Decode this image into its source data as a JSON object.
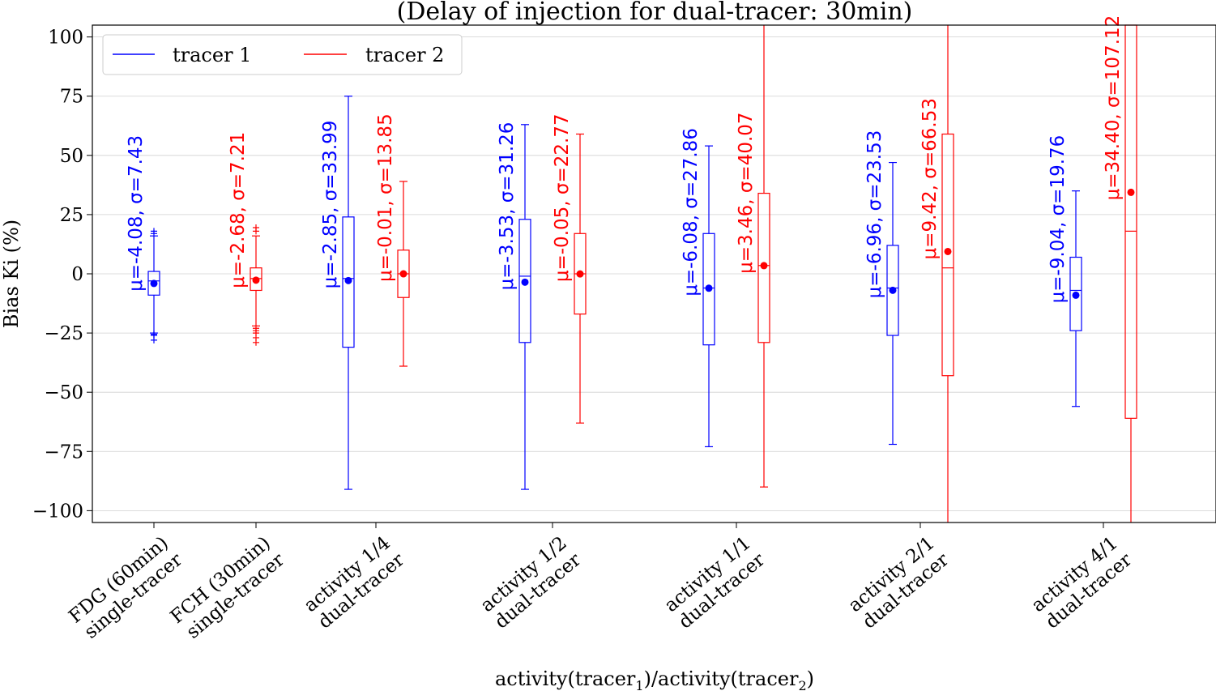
{
  "chart_data": {
    "type": "box",
    "title": "(Delay of injection for dual-tracer: 30min)",
    "xlabel_parts": [
      "activity(tracer",
      "1",
      ")/activity(tracer",
      "2",
      ")"
    ],
    "ylabel": "Bias Ki (%)",
    "ylim": [
      -105,
      105
    ],
    "yticks": [
      100,
      75,
      50,
      25,
      0,
      -25,
      -50,
      -75,
      -100
    ],
    "ytick_labels": [
      "100",
      "75",
      "50",
      "25",
      "0",
      "−25",
      "−50",
      "−75",
      "−100"
    ],
    "grid": "horizontal",
    "legend_position": "top-left",
    "categories": [
      [
        "FDG (60min)",
        "single-tracer"
      ],
      [
        "FCH (30min)",
        "single-tracer"
      ],
      [
        "activity 1/4",
        "dual-tracer"
      ],
      [
        "activity 1/2",
        "dual-tracer"
      ],
      [
        "activity 1/1",
        "dual-tracer"
      ],
      [
        "activity 2/1",
        "dual-tracer"
      ],
      [
        "activity 4/1",
        "dual-tracer"
      ]
    ],
    "series": [
      {
        "name": "tracer 1",
        "color": "#0000ff",
        "boxes": [
          {
            "cat": 0,
            "mean": -4.08,
            "median": -3,
            "q1": -9,
            "q3": 1,
            "whisker_low": -25,
            "whisker_high": 16,
            "outliers": [
              -26,
              -28,
              -25.5,
              17,
              18
            ],
            "label": "μ=-4.08,  σ=7.43"
          },
          {
            "cat": 2,
            "mean": -2.85,
            "median": -2,
            "q1": -31,
            "q3": 24,
            "whisker_low": -91,
            "whisker_high": 75,
            "outliers": [],
            "label": "μ=-2.85,  σ=33.99"
          },
          {
            "cat": 3,
            "mean": -3.53,
            "median": -1,
            "q1": -29,
            "q3": 23,
            "whisker_low": -91,
            "whisker_high": 63,
            "outliers": [],
            "label": "μ=-3.53,  σ=31.26"
          },
          {
            "cat": 4,
            "mean": -6.08,
            "median": -6,
            "q1": -30,
            "q3": 17,
            "whisker_low": -73,
            "whisker_high": 54,
            "outliers": [],
            "label": "μ=-6.08,  σ=27.86"
          },
          {
            "cat": 5,
            "mean": -6.96,
            "median": -6,
            "q1": -26,
            "q3": 12,
            "whisker_low": -72,
            "whisker_high": 47,
            "outliers": [],
            "label": "μ=-6.96,  σ=23.53"
          },
          {
            "cat": 6,
            "mean": -9.04,
            "median": -7,
            "q1": -24,
            "q3": 7,
            "whisker_low": -56,
            "whisker_high": 35,
            "outliers": [],
            "label": "μ=-9.04,  σ=19.76"
          }
        ]
      },
      {
        "name": "tracer 2",
        "color": "#ff0000",
        "boxes": [
          {
            "cat": 1,
            "mean": -2.68,
            "median": -2,
            "q1": -7,
            "q3": 2.5,
            "whisker_low": -22,
            "whisker_high": 16,
            "outliers": [
              -23,
              -24,
              -25,
              -27,
              -29,
              18,
              19.5
            ],
            "label": "μ=-2.68,  σ=7.21"
          },
          {
            "cat": 2,
            "mean": -0.01,
            "median": 0,
            "q1": -10,
            "q3": 10,
            "whisker_low": -39,
            "whisker_high": 39,
            "outliers": [],
            "label": "μ=-0.01,  σ=13.85"
          },
          {
            "cat": 3,
            "mean": -0.05,
            "median": 0,
            "q1": -17,
            "q3": 17,
            "whisker_low": -63,
            "whisker_high": 59,
            "outliers": [],
            "label": "μ=-0.05,  σ=22.77"
          },
          {
            "cat": 4,
            "mean": 3.46,
            "median": 3.5,
            "q1": -29,
            "q3": 34,
            "whisker_low": -90,
            "whisker_high": 110,
            "outliers": [],
            "label": "μ=3.46,  σ=40.07"
          },
          {
            "cat": 5,
            "mean": 9.42,
            "median": 2.5,
            "q1": -43,
            "q3": 59,
            "whisker_low": -110,
            "whisker_high": 110,
            "outliers": [],
            "label": "μ=9.42,  σ=66.53"
          },
          {
            "cat": 6,
            "mean": 34.4,
            "median": 18,
            "q1": -61,
            "q3": 110,
            "whisker_low": -110,
            "whisker_high": 110,
            "outliers": [],
            "label": "μ=34.40,  σ=107.12"
          }
        ]
      }
    ]
  }
}
